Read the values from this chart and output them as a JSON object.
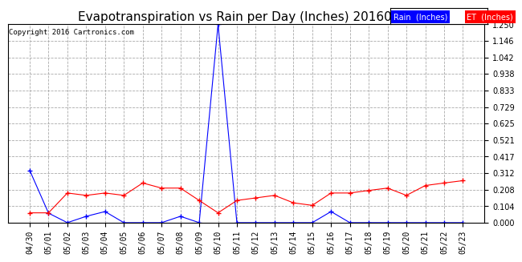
{
  "title": "Evapotranspiration vs Rain per Day (Inches) 20160524",
  "copyright": "Copyright 2016 Cartronics.com",
  "legend_rain": "Rain  (Inches)",
  "legend_et": "ET  (Inches)",
  "x_labels": [
    "04/30",
    "05/01",
    "05/02",
    "05/03",
    "05/04",
    "05/05",
    "05/06",
    "05/07",
    "05/08",
    "05/09",
    "05/10",
    "05/11",
    "05/12",
    "05/13",
    "05/14",
    "05/15",
    "05/16",
    "05/17",
    "05/18",
    "05/19",
    "05/20",
    "05/21",
    "05/22",
    "05/23"
  ],
  "rain_values": [
    0.33,
    0.06,
    0.0,
    0.04,
    0.07,
    0.0,
    0.0,
    0.0,
    0.04,
    0.0,
    1.25,
    0.0,
    0.0,
    0.0,
    0.0,
    0.0,
    0.07,
    0.0,
    0.0,
    0.0,
    0.0,
    0.0,
    0.0,
    0.0
  ],
  "et_values": [
    0.062,
    0.062,
    0.187,
    0.172,
    0.187,
    0.172,
    0.25,
    0.218,
    0.218,
    0.14,
    0.062,
    0.14,
    0.156,
    0.172,
    0.125,
    0.109,
    0.187,
    0.187,
    0.203,
    0.218,
    0.172,
    0.234,
    0.25,
    0.265
  ],
  "ylim": [
    0.0,
    1.25
  ],
  "yticks": [
    0.0,
    0.104,
    0.208,
    0.312,
    0.417,
    0.521,
    0.625,
    0.729,
    0.833,
    0.938,
    1.042,
    1.146,
    1.25
  ],
  "rain_color": "#0000ff",
  "et_color": "#ff0000",
  "bg_color": "#ffffff",
  "grid_color": "#aaaaaa",
  "title_fontsize": 11,
  "tick_fontsize": 7,
  "copyright_fontsize": 6.5
}
